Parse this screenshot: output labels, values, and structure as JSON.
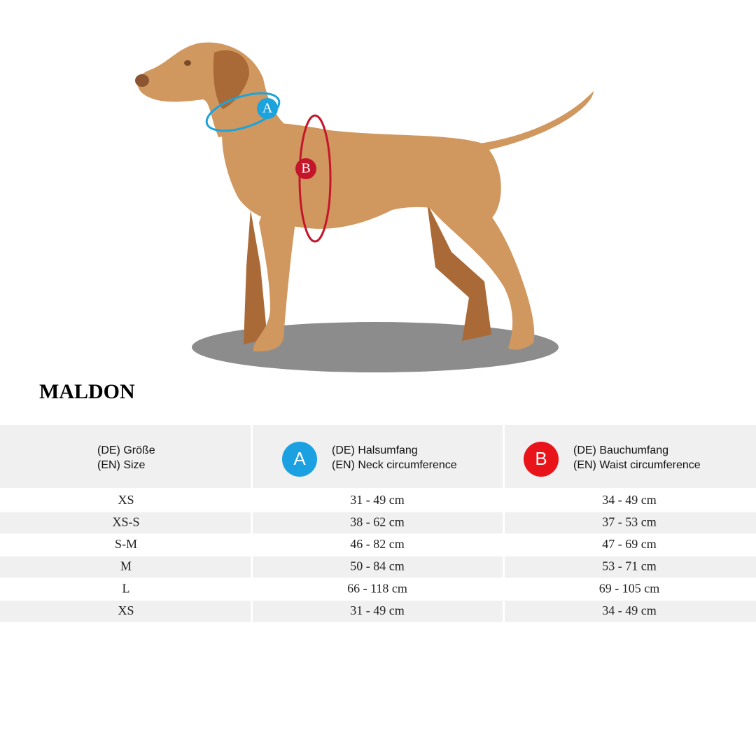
{
  "title": "MALDON",
  "table": {
    "header": [
      {
        "lines": [
          "(DE) Größe",
          "(EN) Size"
        ]
      },
      {
        "badge": "A",
        "lines": [
          "(DE) Halsumfang",
          "(EN) Neck circumference"
        ]
      },
      {
        "badge": "B",
        "lines": [
          "(DE) Bauchumfang",
          "(EN) Waist circumference"
        ]
      }
    ],
    "rows": [
      [
        "XS",
        "31 - 49 cm",
        "34 - 49 cm"
      ],
      [
        "XS-S",
        "38 - 62 cm",
        "37 - 53 cm"
      ],
      [
        "S-M",
        "46 - 82 cm",
        "47 - 69 cm"
      ],
      [
        "M",
        "50 - 84 cm",
        "53 - 71 cm"
      ],
      [
        "L",
        "66 - 118 cm",
        "69 - 105 cm"
      ],
      [
        "XS",
        "31 - 49 cm",
        "34 - 49 cm"
      ]
    ]
  }
}
